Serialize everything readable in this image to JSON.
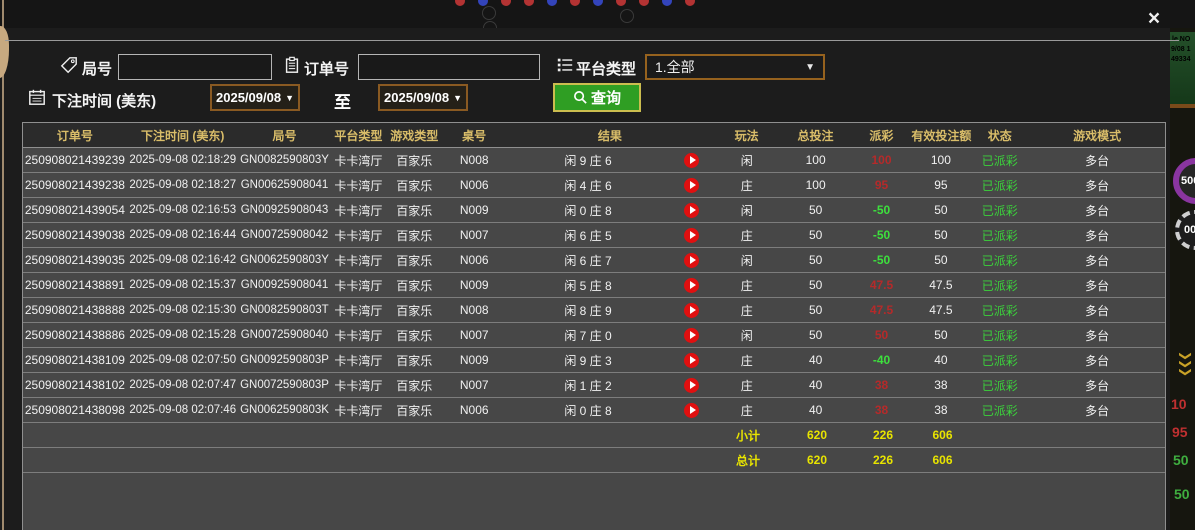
{
  "dialog": {
    "close_label": "×"
  },
  "filters": {
    "round_label": "局号",
    "round_value": "",
    "order_label": "订单号",
    "order_value": "",
    "platform_label": "平台类型",
    "platform_value": "1.全部",
    "bet_time_label": "下注时间 (美东)",
    "date_from": "2025/09/08",
    "to_label": "至",
    "date_to": "2025/09/08",
    "query_label": "查询"
  },
  "table": {
    "columns": [
      "订单号",
      "下注时间 (美东)",
      "局号",
      "平台类型",
      "游戏类型",
      "桌号",
      "结果",
      "玩法",
      "总投注",
      "派彩",
      "有效投注额",
      "状态",
      "游戏模式"
    ],
    "rows": [
      {
        "order": "250908021439239",
        "time": "2025-09-08 02:18:29",
        "round": "GN0082590803Y",
        "platform": "卡卡湾厅",
        "game": "百家乐",
        "table_no": "N008",
        "result": "闲 9 庄 6",
        "side": "闲",
        "bet": "100",
        "payout": "100",
        "valid": "100",
        "status": "已派彩",
        "mode": "多台"
      },
      {
        "order": "250908021439238",
        "time": "2025-09-08 02:18:27",
        "round": "GN00625908041",
        "platform": "卡卡湾厅",
        "game": "百家乐",
        "table_no": "N006",
        "result": "闲 4 庄 6",
        "side": "庄",
        "bet": "100",
        "payout": "95",
        "valid": "95",
        "status": "已派彩",
        "mode": "多台"
      },
      {
        "order": "250908021439054",
        "time": "2025-09-08 02:16:53",
        "round": "GN00925908043",
        "platform": "卡卡湾厅",
        "game": "百家乐",
        "table_no": "N009",
        "result": "闲 0 庄 8",
        "side": "闲",
        "bet": "50",
        "payout": "-50",
        "valid": "50",
        "status": "已派彩",
        "mode": "多台"
      },
      {
        "order": "250908021439038",
        "time": "2025-09-08 02:16:44",
        "round": "GN00725908042",
        "platform": "卡卡湾厅",
        "game": "百家乐",
        "table_no": "N007",
        "result": "闲 6 庄 5",
        "side": "庄",
        "bet": "50",
        "payout": "-50",
        "valid": "50",
        "status": "已派彩",
        "mode": "多台"
      },
      {
        "order": "250908021439035",
        "time": "2025-09-08 02:16:42",
        "round": "GN0062590803Y",
        "platform": "卡卡湾厅",
        "game": "百家乐",
        "table_no": "N006",
        "result": "闲 6 庄 7",
        "side": "闲",
        "bet": "50",
        "payout": "-50",
        "valid": "50",
        "status": "已派彩",
        "mode": "多台"
      },
      {
        "order": "250908021438891",
        "time": "2025-09-08 02:15:37",
        "round": "GN00925908041",
        "platform": "卡卡湾厅",
        "game": "百家乐",
        "table_no": "N009",
        "result": "闲 5 庄 8",
        "side": "庄",
        "bet": "50",
        "payout": "47.5",
        "valid": "47.5",
        "status": "已派彩",
        "mode": "多台"
      },
      {
        "order": "250908021438888",
        "time": "2025-09-08 02:15:30",
        "round": "GN0082590803T",
        "platform": "卡卡湾厅",
        "game": "百家乐",
        "table_no": "N008",
        "result": "闲 8 庄 9",
        "side": "庄",
        "bet": "50",
        "payout": "47.5",
        "valid": "47.5",
        "status": "已派彩",
        "mode": "多台"
      },
      {
        "order": "250908021438886",
        "time": "2025-09-08 02:15:28",
        "round": "GN00725908040",
        "platform": "卡卡湾厅",
        "game": "百家乐",
        "table_no": "N007",
        "result": "闲 7 庄 0",
        "side": "闲",
        "bet": "50",
        "payout": "50",
        "valid": "50",
        "status": "已派彩",
        "mode": "多台"
      },
      {
        "order": "250908021438109",
        "time": "2025-09-08 02:07:50",
        "round": "GN0092590803P",
        "platform": "卡卡湾厅",
        "game": "百家乐",
        "table_no": "N009",
        "result": "闲 9 庄 3",
        "side": "庄",
        "bet": "40",
        "payout": "-40",
        "valid": "40",
        "status": "已派彩",
        "mode": "多台"
      },
      {
        "order": "250908021438102",
        "time": "2025-09-08 02:07:47",
        "round": "GN0072590803P",
        "platform": "卡卡湾厅",
        "game": "百家乐",
        "table_no": "N007",
        "result": "闲 1 庄 2",
        "side": "庄",
        "bet": "40",
        "payout": "38",
        "valid": "38",
        "status": "已派彩",
        "mode": "多台"
      },
      {
        "order": "250908021438098",
        "time": "2025-09-08 02:07:46",
        "round": "GN0062590803K",
        "platform": "卡卡湾厅",
        "game": "百家乐",
        "table_no": "N006",
        "result": "闲 0 庄 8",
        "side": "庄",
        "bet": "40",
        "payout": "38",
        "valid": "38",
        "status": "已派彩",
        "mode": "多台"
      }
    ],
    "subtotal": {
      "label": "小计",
      "bet": "620",
      "payout": "226",
      "valid": "606"
    },
    "total": {
      "label": "总计",
      "bet": "620",
      "payout": "226",
      "valid": "606"
    }
  },
  "colors": {
    "header_gold": "#d9bd69",
    "row_bg": "#474747",
    "header_bg": "#2b2b2b",
    "payout_win_red": "#b52a2a",
    "payout_loss_green": "#3de03d",
    "status_green": "#3bd23b",
    "total_yellow": "#e8e400",
    "query_green": "#2f9e23",
    "date_border": "#8a5a22"
  },
  "background": {
    "top_dots": [
      "#b33333",
      "#3344bb",
      "#b33333",
      "#b33333",
      "#3344bb",
      "#b33333",
      "#3344bb",
      "#b33333",
      "#b33333",
      "#3344bb",
      "#b33333"
    ],
    "right": {
      "texts": [
        {
          "t": "le NO",
          "c": "#e8d44a"
        },
        {
          "t": "9/08 1",
          "c": "#a8d44a"
        },
        {
          "t": "49334",
          "c": "#a8d44a"
        }
      ],
      "chips": [
        {
          "label": "500"
        },
        {
          "label": "00"
        }
      ],
      "chevrons": "❯❯❯",
      "numbers": [
        {
          "t": "10",
          "c": "#c03030"
        },
        {
          "t": "95",
          "c": "#c03030"
        },
        {
          "t": "50",
          "c": "#3fae3f"
        },
        {
          "t": "50",
          "c": "#3fae3f"
        }
      ]
    }
  }
}
